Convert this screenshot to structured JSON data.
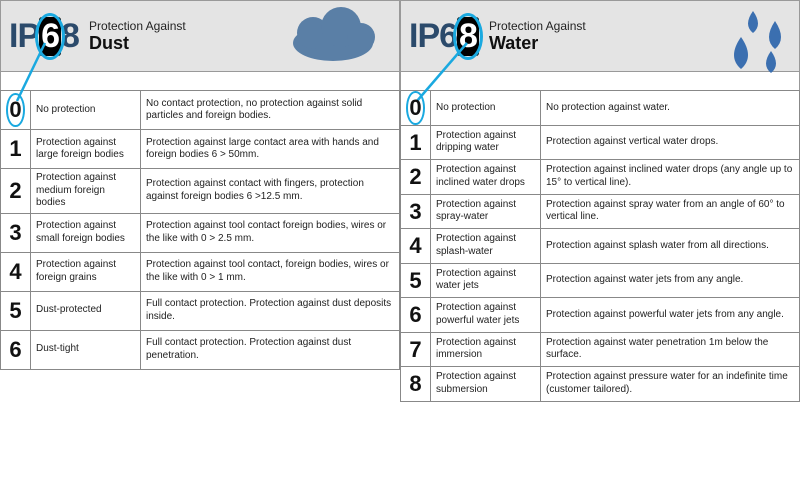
{
  "colors": {
    "accent": "#1aa9e0",
    "cloud": "#5a7fa6",
    "drop": "#3b6fb0",
    "logo": "#2b4a6b"
  },
  "dust": {
    "ip_prefix": "IP",
    "hl_digit": "6",
    "rest": "8",
    "title1": "Protection Against",
    "title2": "Dust",
    "rows": [
      {
        "n": "0",
        "short": "No protection",
        "long": "No contact protection, no protection against solid particles and foreign bodies."
      },
      {
        "n": "1",
        "short": "Protection against large foreign bodies",
        "long": "Protection against large contact area with hands and foreign bodies 6 > 50mm."
      },
      {
        "n": "2",
        "short": "Protection against medium foreign bodies",
        "long": "Protection against contact with fingers, protection against foreign bodies 6 >12.5 mm."
      },
      {
        "n": "3",
        "short": "Protection against small foreign bodies",
        "long": "Protection against tool contact foreign bodies, wires or the like with 0 > 2.5 mm."
      },
      {
        "n": "4",
        "short": "Protection against foreign grains",
        "long": "Protection against tool contact, foreign bodies, wires or the like with 0 > 1 mm."
      },
      {
        "n": "5",
        "short": "Dust-protected",
        "long": "Full contact protection. Protection against dust deposits inside."
      },
      {
        "n": "6",
        "short": "Dust-tight",
        "long": "Full contact protection. Protection against dust penetration."
      }
    ]
  },
  "water": {
    "ip_prefix": "IP",
    "pre": "6",
    "hl_digit": "8",
    "title1": "Protection Against",
    "title2": "Water",
    "rows": [
      {
        "n": "0",
        "short": "No protection",
        "long": "No protection against water."
      },
      {
        "n": "1",
        "short": "Protection against dripping water",
        "long": "Protection against vertical water drops."
      },
      {
        "n": "2",
        "short": "Protection against inclined water drops",
        "long": "Protection against inclined water drops (any angle up to 15° to vertical line)."
      },
      {
        "n": "3",
        "short": "Protection against spray-water",
        "long": "Protection against spray water from an angle of 60° to vertical line."
      },
      {
        "n": "4",
        "short": "Protection against splash-water",
        "long": "Protection against splash water from all directions."
      },
      {
        "n": "5",
        "short": "Protection against water jets",
        "long": "Protection against water jets from any angle."
      },
      {
        "n": "6",
        "short": "Protection against powerful water jets",
        "long": "Protection against powerful water jets from any angle."
      },
      {
        "n": "7",
        "short": "Protection against immersion",
        "long": "Protection against water penetration 1m below the surface."
      },
      {
        "n": "8",
        "short": "Protection against submersion",
        "long": "Protection against pressure water for an indefinite time (customer tailored)."
      }
    ]
  }
}
